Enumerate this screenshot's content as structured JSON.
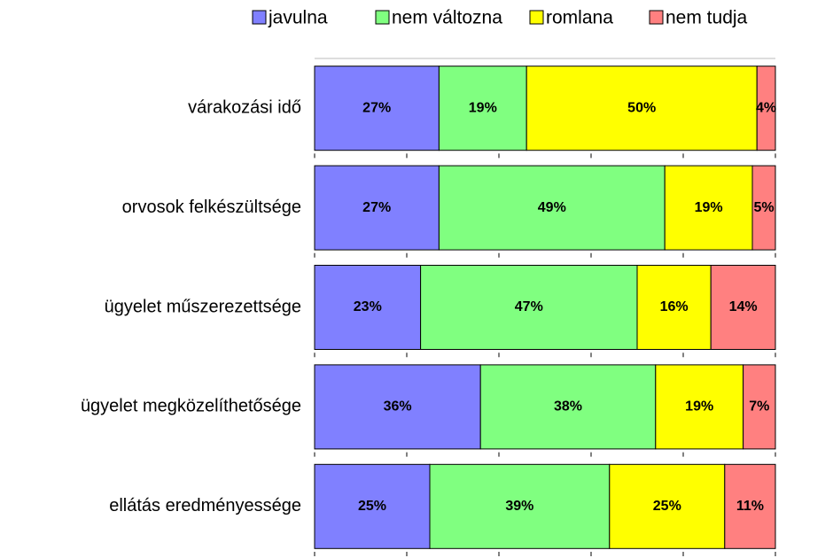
{
  "chart_data": {
    "type": "stacked_bar_horizontal",
    "categories": [
      "várakozási idő",
      "orvosok felkészültsége",
      "ügyelet műszerezettsége",
      "ügyelet megközelíthetősége",
      "ellátás eredményessége"
    ],
    "series": [
      {
        "name": "javulna",
        "color": "#8080ff",
        "values": [
          27,
          27,
          23,
          36,
          25
        ],
        "value_labels": [
          "27%",
          "27%",
          "23%",
          "36%",
          "25%"
        ]
      },
      {
        "name": "nem változna",
        "color": "#80ff80",
        "values": [
          19,
          49,
          47,
          38,
          39
        ],
        "value_labels": [
          "19%",
          "49%",
          "47%",
          "38%",
          "39%"
        ]
      },
      {
        "name": "romlana",
        "color": "#ffff00",
        "values": [
          50,
          19,
          16,
          19,
          25
        ],
        "value_labels": [
          "50%",
          "19%",
          "16%",
          "19%",
          "25%"
        ]
      },
      {
        "name": "nem tudja",
        "color": "#ff8080",
        "values": [
          4,
          5,
          14,
          7,
          11
        ],
        "value_labels": [
          "4%",
          "5%",
          "14%",
          "7%",
          "11%"
        ]
      }
    ],
    "xlim": [
      0,
      100
    ],
    "xticks": [
      0,
      20,
      40,
      60,
      80,
      100
    ],
    "legend": "top"
  }
}
